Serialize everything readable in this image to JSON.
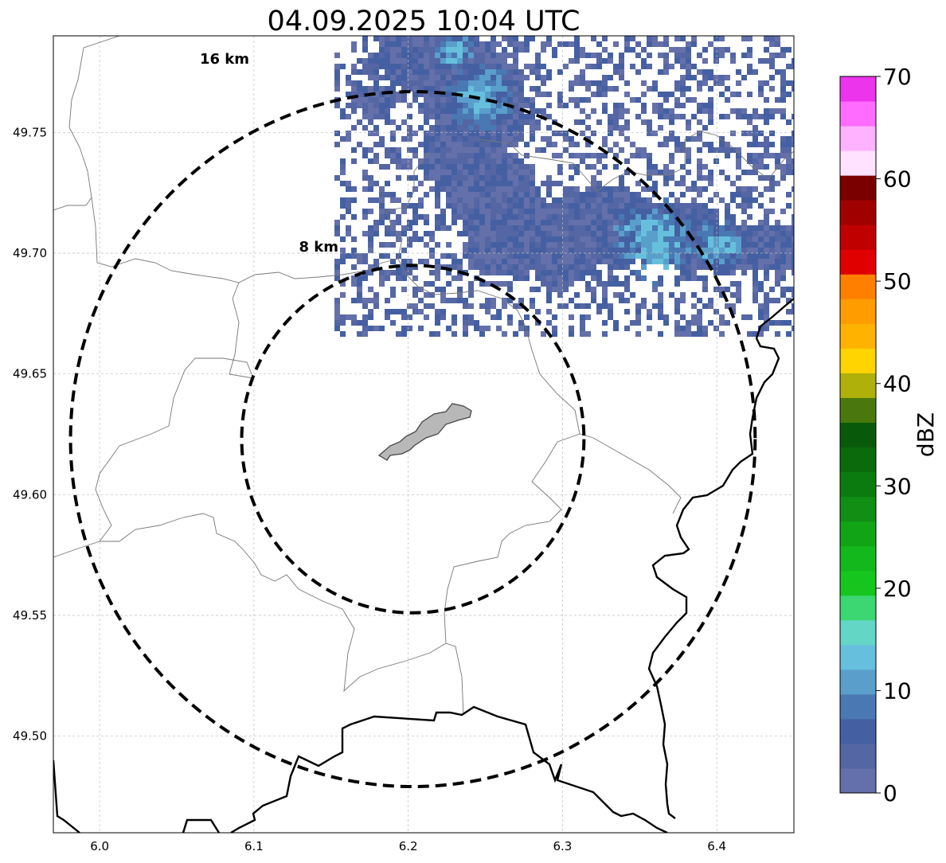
{
  "title": "04.09.2025 10:04 UTC",
  "map": {
    "x_ticks": [
      "6.0",
      "6.1",
      "6.2",
      "6.3",
      "6.4"
    ],
    "y_ticks": [
      "49.75",
      "49.70",
      "49.65",
      "49.60",
      "49.55",
      "49.50"
    ],
    "lon_range": [
      5.97,
      6.45
    ],
    "lat_range": [
      49.46,
      49.79
    ],
    "gridlines": true,
    "center": {
      "lon": 6.203,
      "lat": 49.623
    },
    "rings": [
      {
        "label": "16 km",
        "radius_km": 16
      },
      {
        "label": "8 km",
        "radius_km": 8
      }
    ],
    "echo_region": "north-east of the centre, reflectivity roughly 0–15 dBZ, peaks 12–15 dBZ near 6.25–6.26 E / 49.76 N and 6.35–6.37 E / 49.70 N",
    "boundary_colors": {
      "thin": "#777777",
      "thick": "#000000",
      "airport_fill": "#b8b8b8"
    }
  },
  "colorbar": {
    "label": "dBZ",
    "ticks": [
      "0",
      "10",
      "20",
      "30",
      "40",
      "50",
      "60",
      "70"
    ],
    "range": [
      0,
      70
    ],
    "step": 2.5,
    "colors": [
      "#6470aa",
      "#5566a4",
      "#4560a2",
      "#4a78b2",
      "#5a9ecb",
      "#66c0dd",
      "#63d6c6",
      "#3cd672",
      "#16c51e",
      "#13b81c",
      "#11a516",
      "#118e14",
      "#0b7b0f",
      "#0a6a0c",
      "#085a0a",
      "#4a780c",
      "#b0b00a",
      "#ffd400",
      "#ffb200",
      "#ff9c00",
      "#ff7f00",
      "#e00000",
      "#c00000",
      "#a00000",
      "#7a0000",
      "#ffe2ff",
      "#ffb2ff",
      "#ff6cff",
      "#ec34ec"
    ]
  }
}
